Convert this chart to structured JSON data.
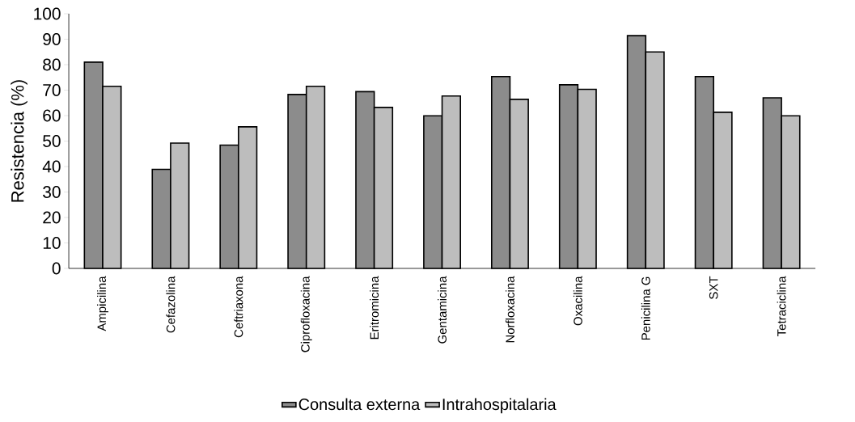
{
  "chart_data": {
    "type": "bar",
    "ylabel": "Resistencia (%)",
    "categories": [
      "Ampicilina",
      "Cefazolina",
      "Ceftriaxona",
      "Ciprofloxacina",
      "Eritromicina",
      "Gentamicina",
      "Norfloxacina",
      "Oxacilina",
      "Penicilina G",
      "SXT",
      "Tetraciclina"
    ],
    "series": [
      {
        "name": "Consulta externa",
        "color": "#8c8c8c",
        "values": [
          81.0,
          38.9,
          48.4,
          68.3,
          69.4,
          59.9,
          75.3,
          72.1,
          91.4,
          75.3,
          67.0
        ]
      },
      {
        "name": "Intrahospitalaria",
        "color": "#bdbdbd",
        "values": [
          71.5,
          49.2,
          55.6,
          71.5,
          63.2,
          67.7,
          66.4,
          70.3,
          85.0,
          61.3,
          59.9
        ]
      }
    ],
    "ylim": [
      0,
      100
    ],
    "yticks": [
      0,
      10,
      20,
      30,
      40,
      50,
      60,
      70,
      80,
      90,
      100
    ],
    "grid": false,
    "legend": "bottom"
  }
}
